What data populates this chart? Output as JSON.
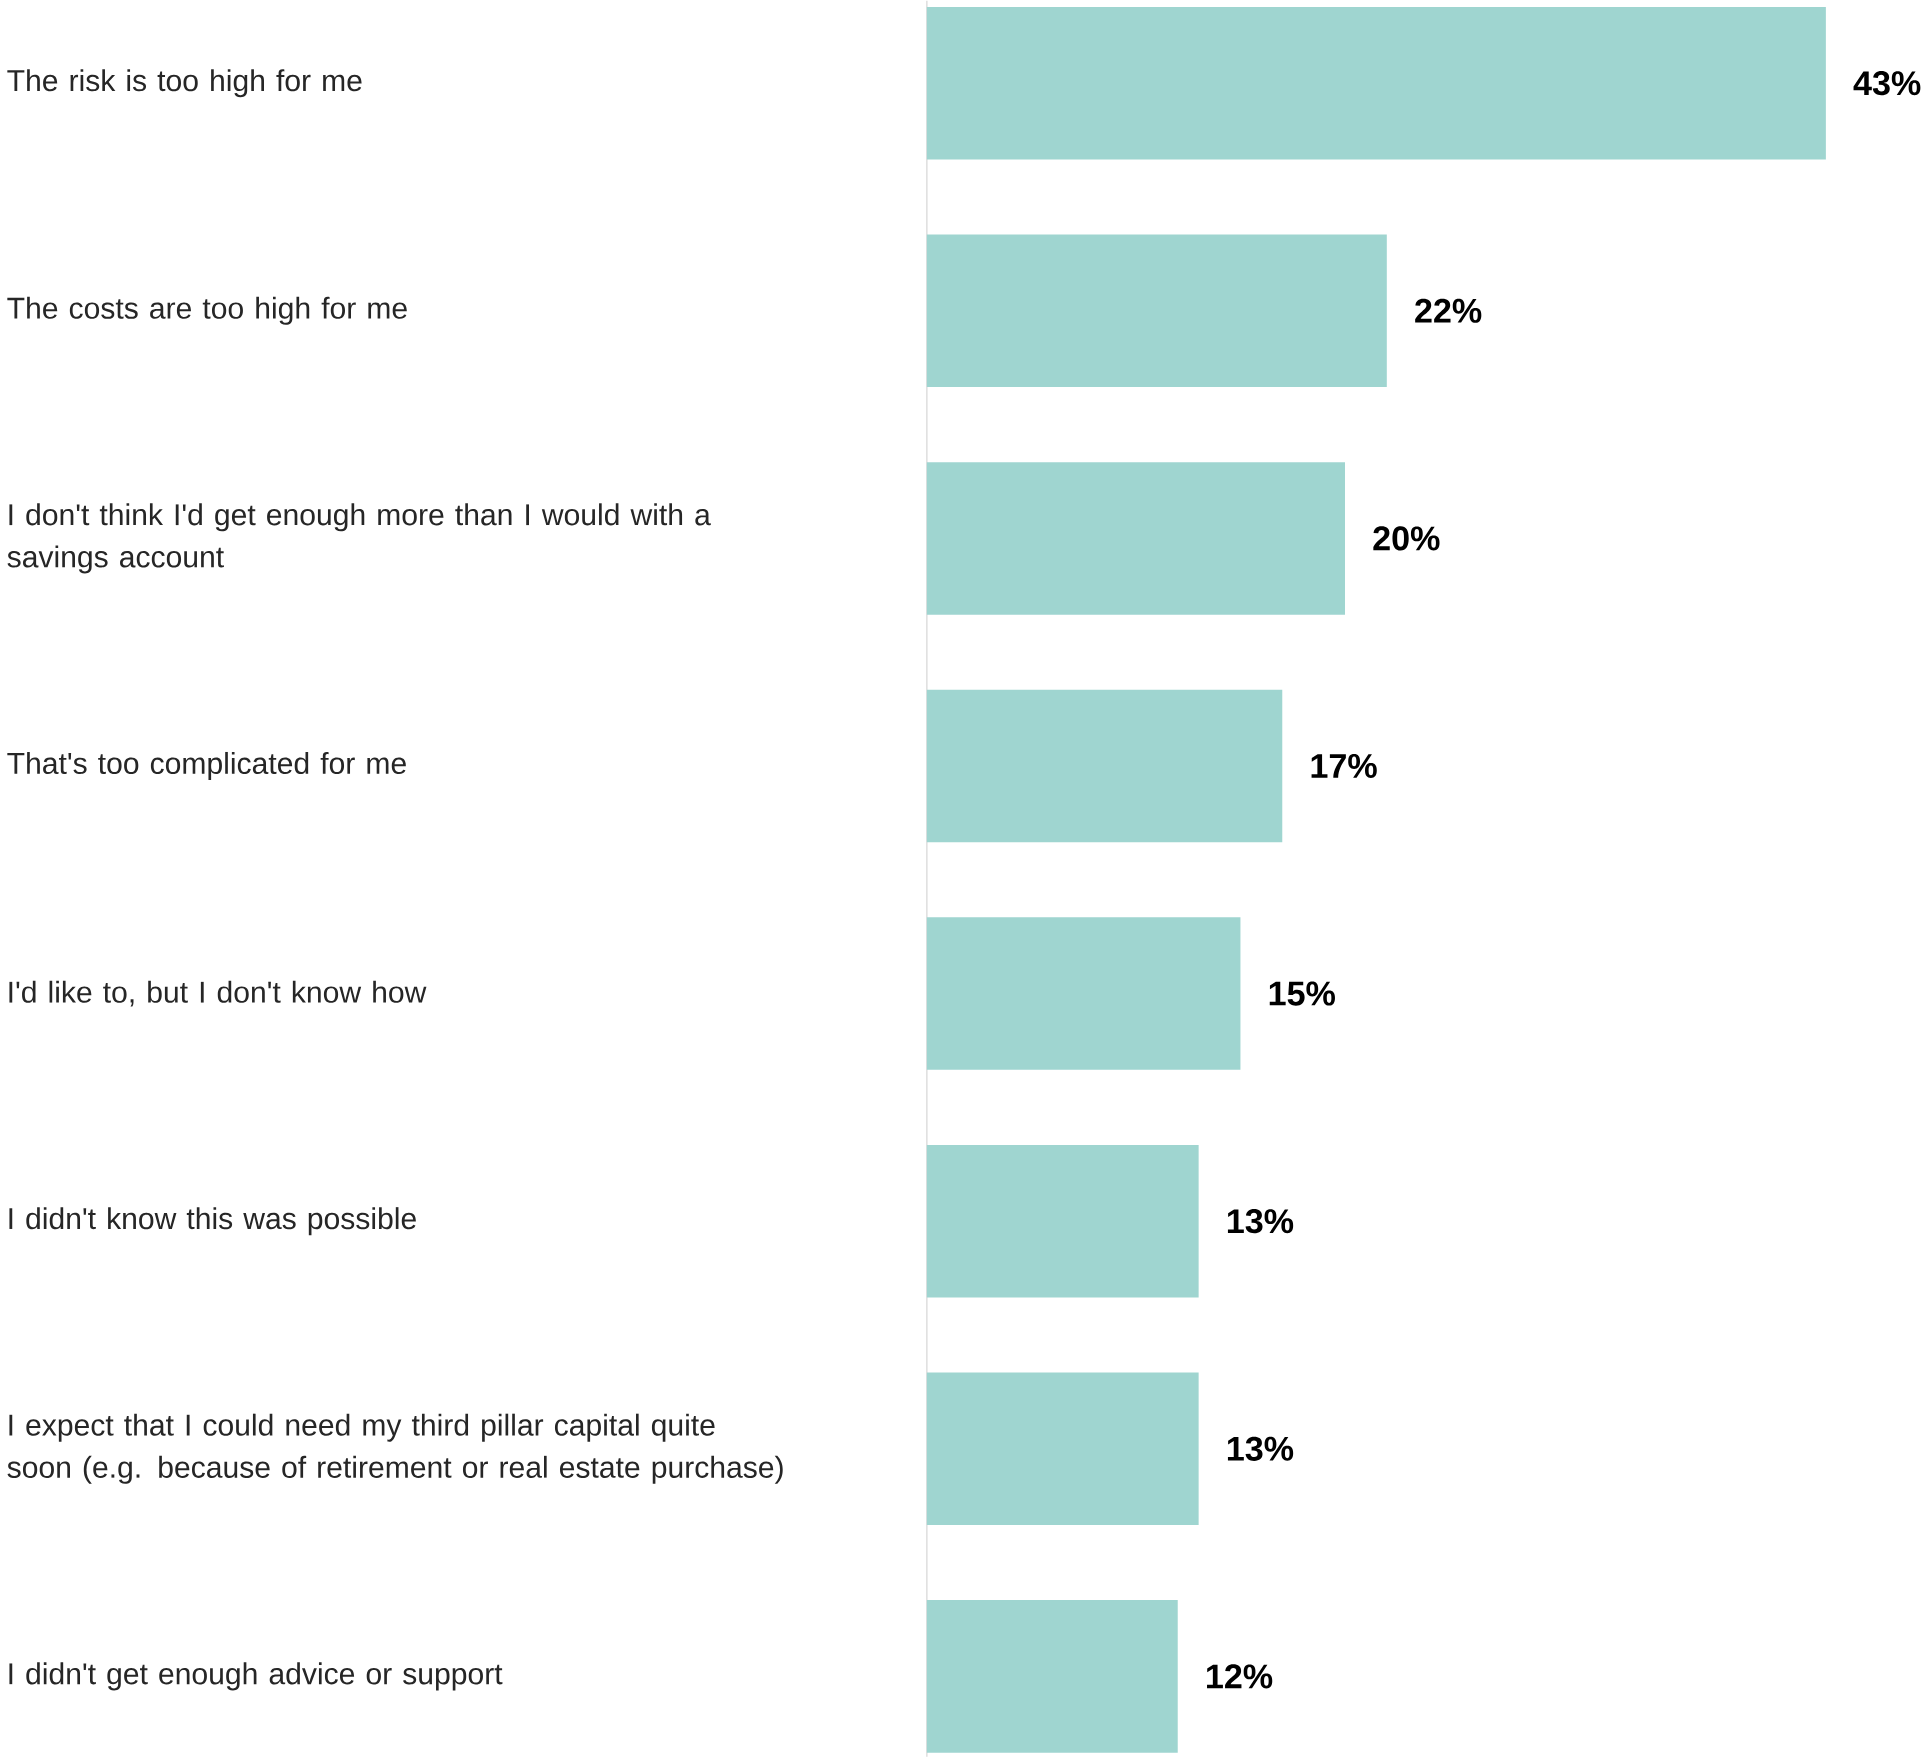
{
  "chart_data": {
    "type": "bar",
    "orientation": "horizontal",
    "categories": [
      "The risk is too high for me",
      "The costs are too high for me",
      "I don't think I'd get enough more than I would with a savings account",
      "That's too complicated for me",
      "I'd like to, but I don't know how",
      "I didn't know this was possible",
      "I expect that I could need my third pillar capital quite soon (e.g. because of retirement or real estate purchase)",
      "I didn't get enough advice or support"
    ],
    "values": [
      43,
      22,
      20,
      17,
      15,
      13,
      13,
      12
    ],
    "value_labels": [
      "43%",
      "22%",
      "20%",
      "17%",
      "15%",
      "13%",
      "13%",
      "12%"
    ],
    "color": "#9fd5d0",
    "tick_labels": "y"
  }
}
